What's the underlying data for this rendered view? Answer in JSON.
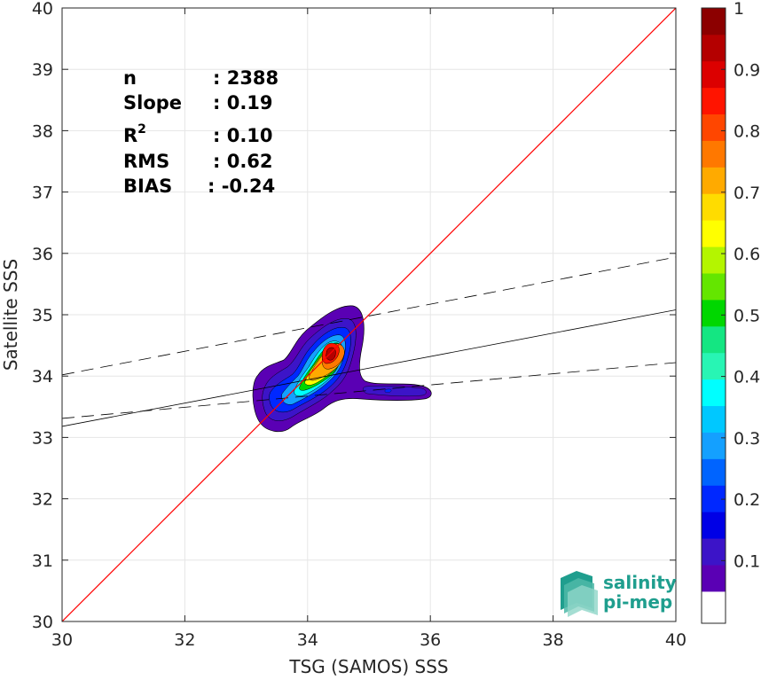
{
  "chart_data": {
    "type": "density-scatter",
    "xlabel": "TSG (SAMOS) SSS",
    "ylabel": "Satellite SSS",
    "xlim": [
      30,
      40
    ],
    "ylim": [
      30,
      40
    ],
    "xticks": [
      "30",
      "32",
      "34",
      "36",
      "38",
      "40"
    ],
    "yticks": [
      "30",
      "31",
      "32",
      "33",
      "34",
      "35",
      "36",
      "37",
      "38",
      "39",
      "40"
    ],
    "grid": true,
    "stats": {
      "n_label": "n",
      "n_value": ": 2388",
      "slope_label": "Slope",
      "slope_value": ": 0.19",
      "r2_label_base": "R",
      "r2_label_sup": "2",
      "r2_value": ": 0.10",
      "rms_label": "RMS",
      "rms_value": ": 0.62",
      "bias_label": "BIAS",
      "bias_value": ": -0.24"
    },
    "lines": {
      "identity": {
        "x": [
          30,
          40
        ],
        "y": [
          30,
          40
        ],
        "color": "#ff0000"
      },
      "regression": {
        "x": [
          30,
          40
        ],
        "y": [
          33.18,
          35.08
        ],
        "color": "#000000"
      },
      "upper_bound": {
        "x": [
          30,
          40
        ],
        "y": [
          34.02,
          35.94
        ],
        "dash": true
      },
      "lower_bound": {
        "x": [
          30,
          40
        ],
        "y": [
          33.31,
          34.22
        ],
        "dash": true
      }
    },
    "density_peak": {
      "x": 34.4,
      "y": 34.3
    },
    "colorbar": {
      "ticks": [
        "0.1",
        "0.2",
        "0.3",
        "0.4",
        "0.5",
        "0.6",
        "0.7",
        "0.8",
        "0.9",
        "1"
      ],
      "range": [
        0,
        1
      ],
      "colors": [
        "#ffffff",
        "#5a00b4",
        "#3c14c8",
        "#0000e6",
        "#0028ff",
        "#0064ff",
        "#14a0ff",
        "#00c8ff",
        "#00ffff",
        "#28f5b4",
        "#14e682",
        "#00d700",
        "#64e600",
        "#b4f500",
        "#ffff00",
        "#ffdc00",
        "#ffaa00",
        "#ff7800",
        "#ff4600",
        "#ff1400",
        "#dc0000",
        "#b40000",
        "#8c0000"
      ]
    }
  },
  "logo": {
    "line1": "salinity",
    "line2": "pi-mep"
  }
}
